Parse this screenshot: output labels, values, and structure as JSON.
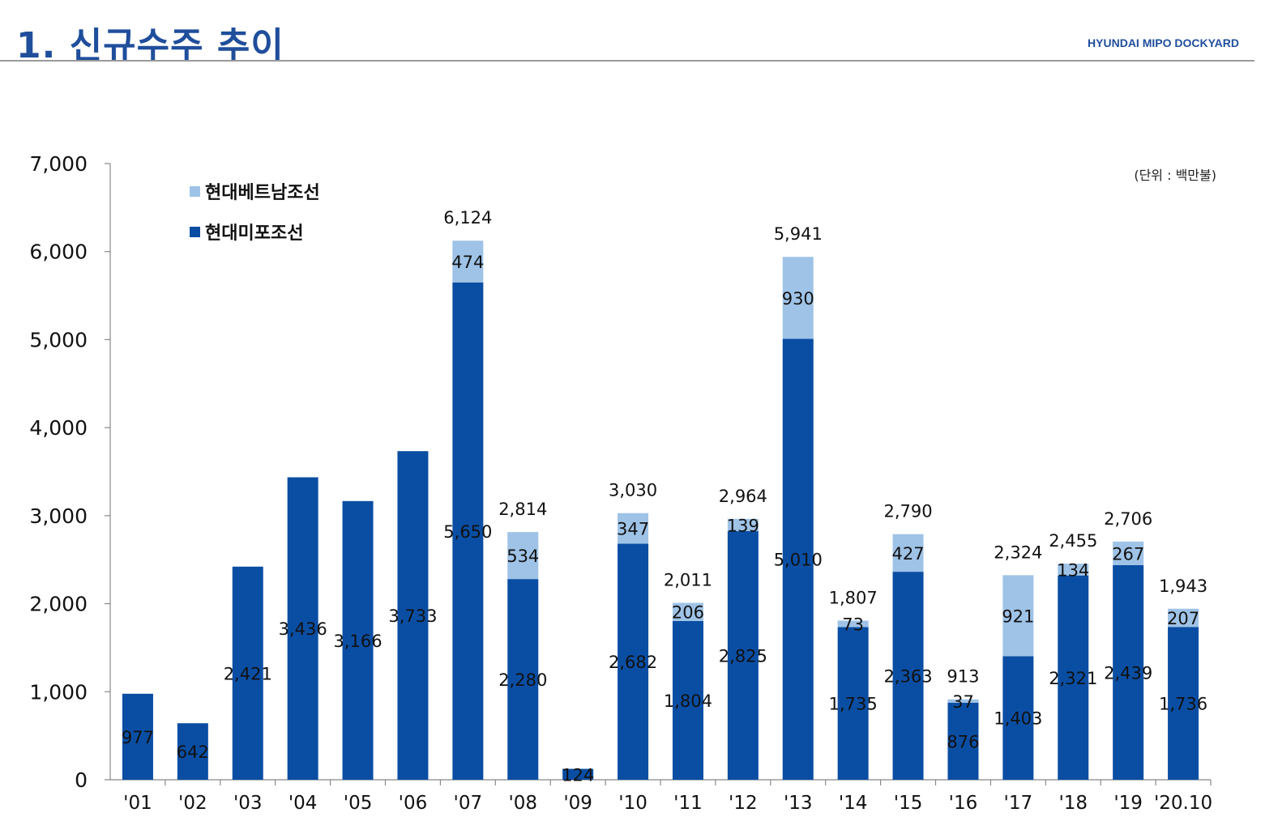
{
  "header": {
    "title": "1. 신규수주 추이",
    "brand": "HYUNDAI MIPO DOCKYARD"
  },
  "colors": {
    "mipo": "#0a4ea3",
    "vietnam": "#9fc3e7",
    "title": "#1f4e9b",
    "axis": "#888888"
  },
  "chart_data": {
    "type": "bar",
    "stacked": true,
    "unit_label": "(단위 : 백만불)",
    "categories": [
      "'01",
      "'02",
      "'03",
      "'04",
      "'05",
      "'06",
      "'07",
      "'08",
      "'09",
      "'10",
      "'11",
      "'12",
      "'13",
      "'14",
      "'15",
      "'16",
      "'17",
      "'18",
      "'19",
      "'20.10"
    ],
    "series": [
      {
        "name": "현대미포조선",
        "color": "#0a4ea3",
        "values": [
          977,
          642,
          2421,
          3436,
          3166,
          3733,
          5650,
          2280,
          124,
          2682,
          1804,
          2825,
          5010,
          1735,
          2363,
          876,
          1403,
          2321,
          2439,
          1736
        ],
        "labels": [
          "977",
          "642",
          "2,421",
          "3,436",
          "3,166",
          "3,733",
          "5,650",
          "2,280",
          "124",
          "2,682",
          "1,804",
          "2,825",
          "5,010",
          "1,735",
          "2,363",
          "876",
          "1,403",
          "2,321",
          "2,439",
          "1,736"
        ]
      },
      {
        "name": "현대베트남조선",
        "color": "#9fc3e7",
        "values": [
          0,
          0,
          0,
          0,
          0,
          0,
          474,
          534,
          0,
          347,
          206,
          139,
          930,
          73,
          427,
          37,
          921,
          134,
          267,
          207
        ],
        "labels": [
          "",
          "",
          "",
          "",
          "",
          "",
          "474",
          "534",
          "",
          "347",
          "206",
          "139",
          "930",
          "73",
          "427",
          "37",
          "921",
          "134",
          "267",
          "207"
        ]
      }
    ],
    "totals": [
      null,
      null,
      null,
      null,
      null,
      null,
      6124,
      2814,
      null,
      3030,
      2011,
      2964,
      5941,
      1807,
      2790,
      913,
      2324,
      2455,
      2706,
      1943
    ],
    "total_labels": [
      "",
      "",
      "",
      "",
      "",
      "",
      "6,124",
      "2,814",
      "",
      "3,030",
      "2,011",
      "2,964",
      "5,941",
      "1,807",
      "2,790",
      "913",
      "2,324",
      "2,455",
      "2,706",
      "1,943"
    ],
    "ylim": [
      0,
      7000
    ],
    "yticks": [
      0,
      1000,
      2000,
      3000,
      4000,
      5000,
      6000,
      7000
    ],
    "ytick_labels": [
      "0",
      "1,000",
      "2,000",
      "3,000",
      "4,000",
      "5,000",
      "6,000",
      "7,000"
    ],
    "legend": [
      {
        "name": "현대베트남조선",
        "color": "#9fc3e7"
      },
      {
        "name": "현대미포조선",
        "color": "#0a4ea3"
      }
    ],
    "legend_position": "top-left",
    "grid": false
  }
}
